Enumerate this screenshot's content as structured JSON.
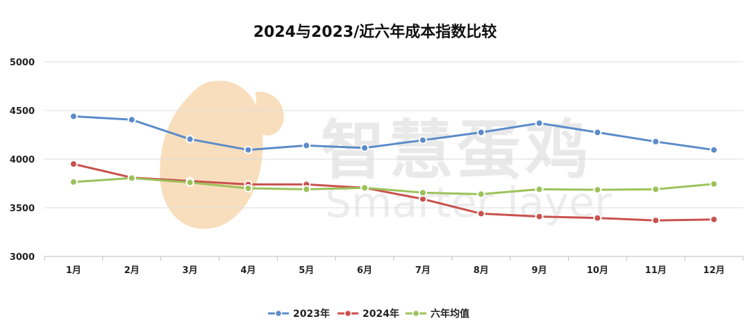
{
  "chart_data": {
    "type": "line",
    "title": "2024与2023/近六年成本指数比较",
    "categories": [
      "1月",
      "2月",
      "3月",
      "4月",
      "5月",
      "6月",
      "7月",
      "8月",
      "9月",
      "10月",
      "11月",
      "12月"
    ],
    "ylim": [
      3000,
      5000
    ],
    "yticks": [
      3000,
      3500,
      4000,
      4500,
      5000
    ],
    "grid": true,
    "legend_position": "bottom",
    "series": [
      {
        "name": "2023年",
        "color": "#5b8bc9",
        "values": [
          4440,
          4405,
          4205,
          4095,
          4140,
          4115,
          4195,
          4275,
          4370,
          4275,
          4180,
          4095
        ]
      },
      {
        "name": "2024年",
        "color": "#c9514d",
        "values": [
          3950,
          3810,
          3775,
          3740,
          3740,
          3705,
          3590,
          3440,
          3410,
          3395,
          3370,
          3380
        ]
      },
      {
        "name": "六年均值",
        "color": "#9bc25a",
        "values": [
          3765,
          3805,
          3760,
          3700,
          3690,
          3705,
          3655,
          3640,
          3690,
          3685,
          3690,
          3745
        ]
      }
    ]
  },
  "watermark": {
    "cn": "智慧蛋鸡",
    "en": "Smarter layer",
    "color": "#f4c88e"
  }
}
